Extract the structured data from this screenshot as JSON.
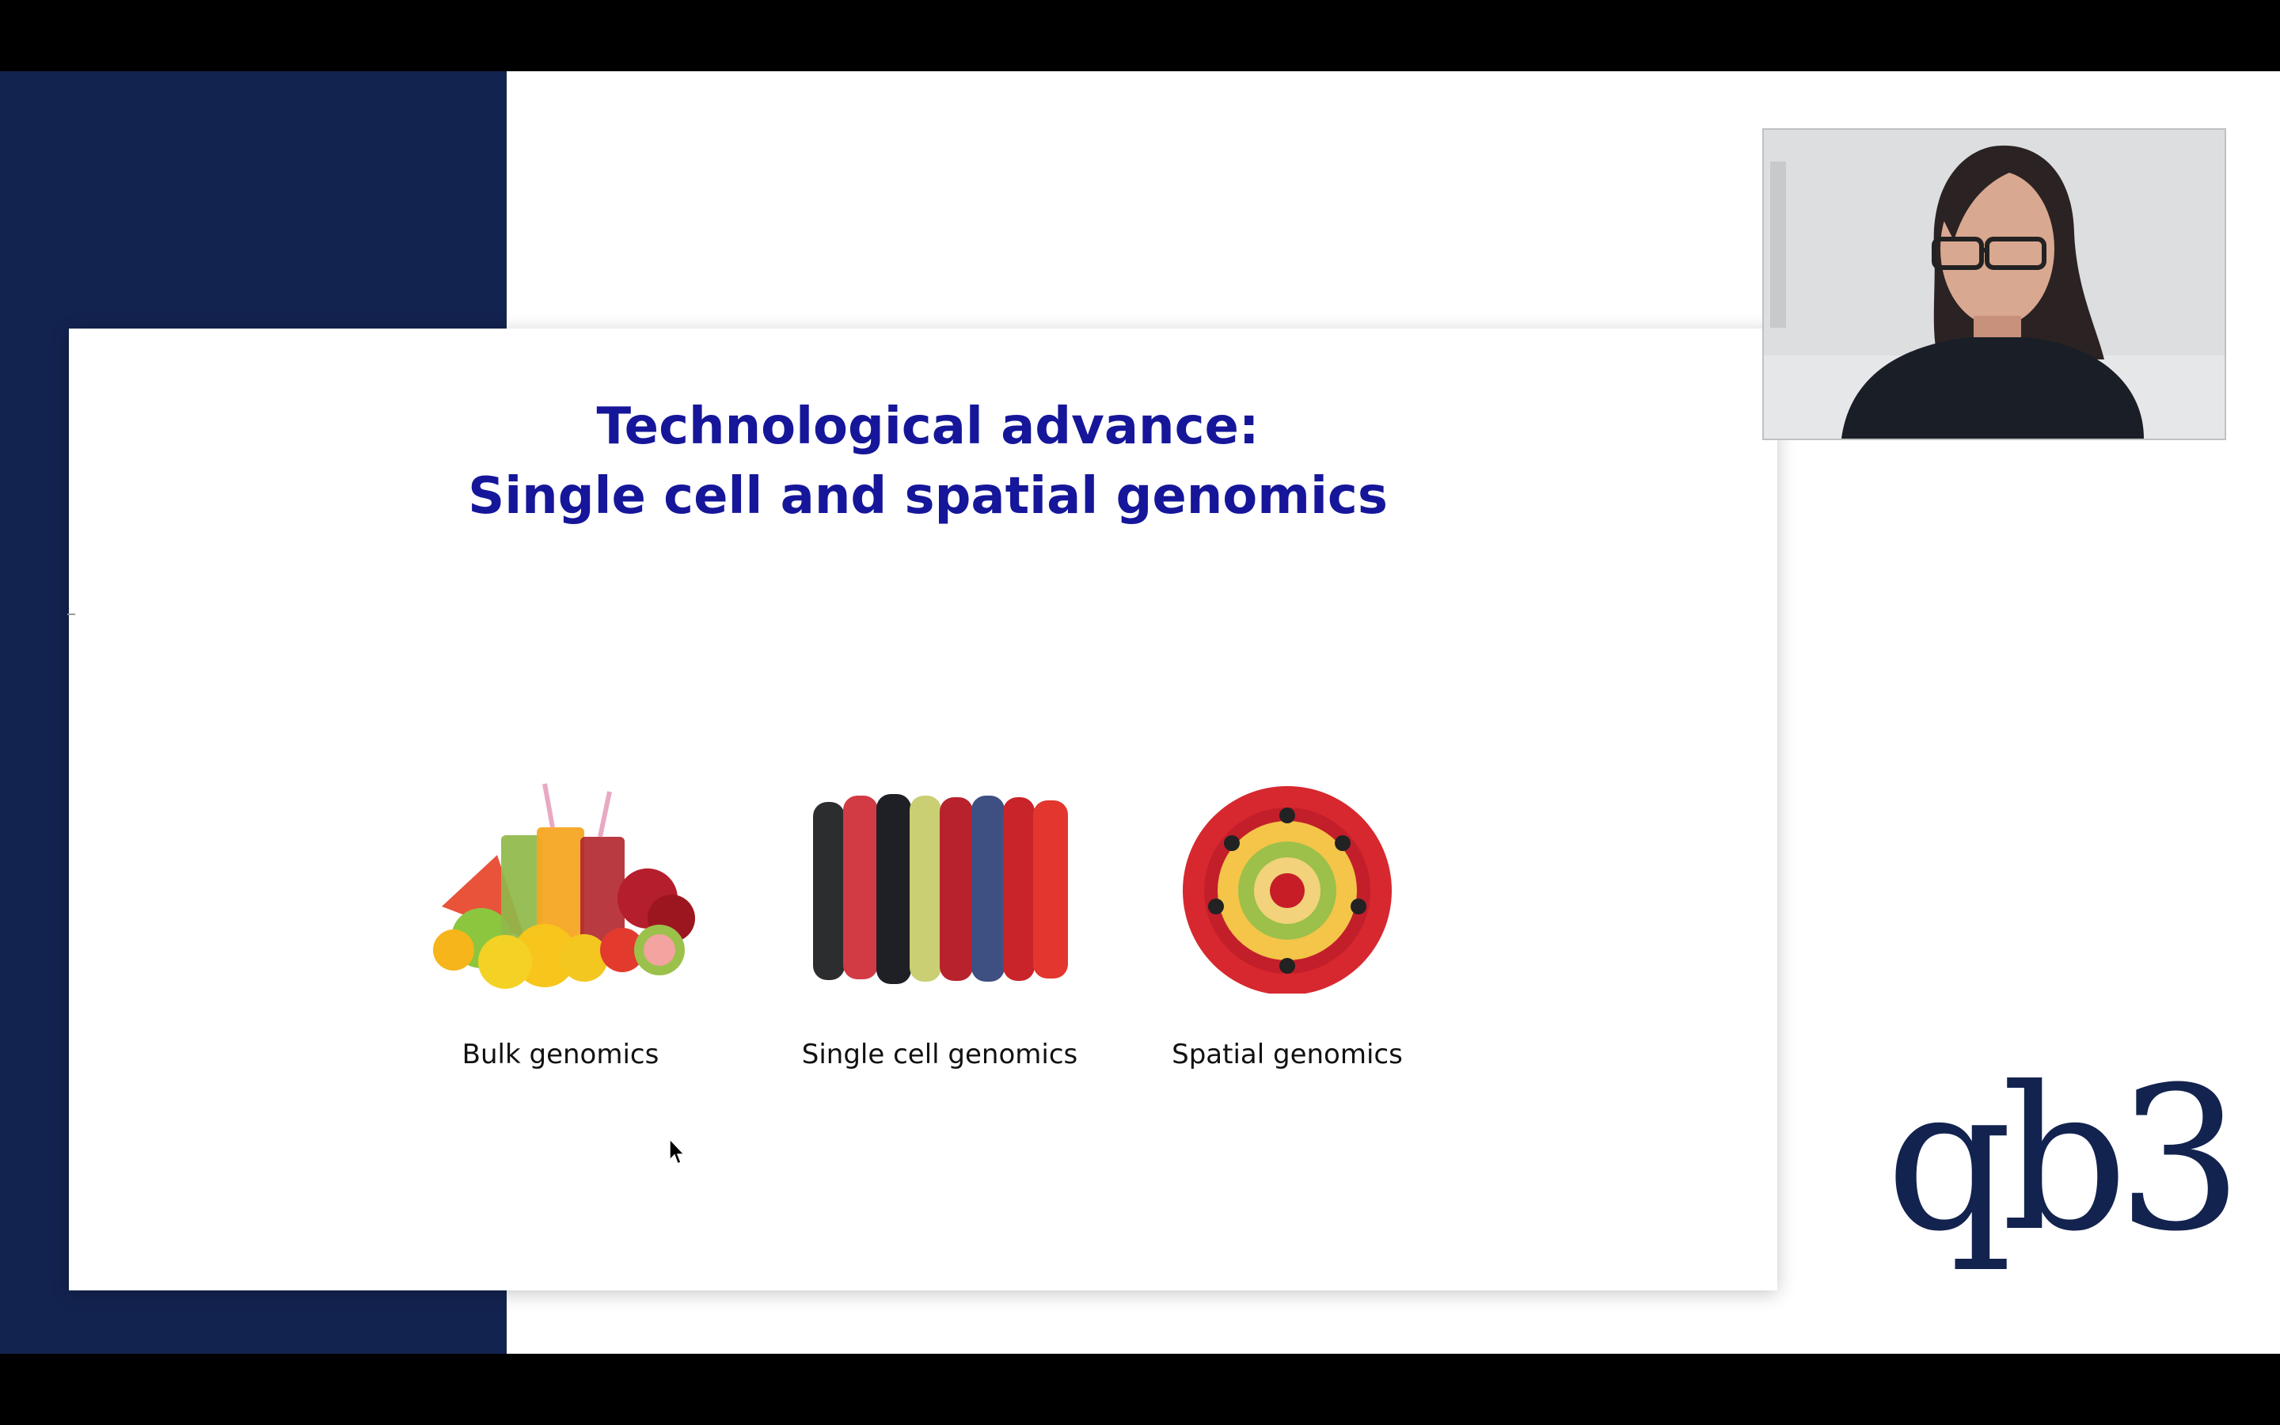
{
  "slide": {
    "title_line1": "Technological advance:",
    "title_line2": "Single cell and spatial genomics",
    "panels": [
      {
        "caption": "Bulk genomics",
        "image": "fruit-juices-image"
      },
      {
        "caption": "Single cell genomics",
        "image": "berry-rows-image"
      },
      {
        "caption": "Spatial genomics",
        "image": "fruit-tart-image"
      }
    ]
  },
  "logo": {
    "text": "qb3"
  },
  "colors": {
    "navy": "#13234f",
    "title_blue": "#16169a",
    "letterbox": "#000000"
  }
}
